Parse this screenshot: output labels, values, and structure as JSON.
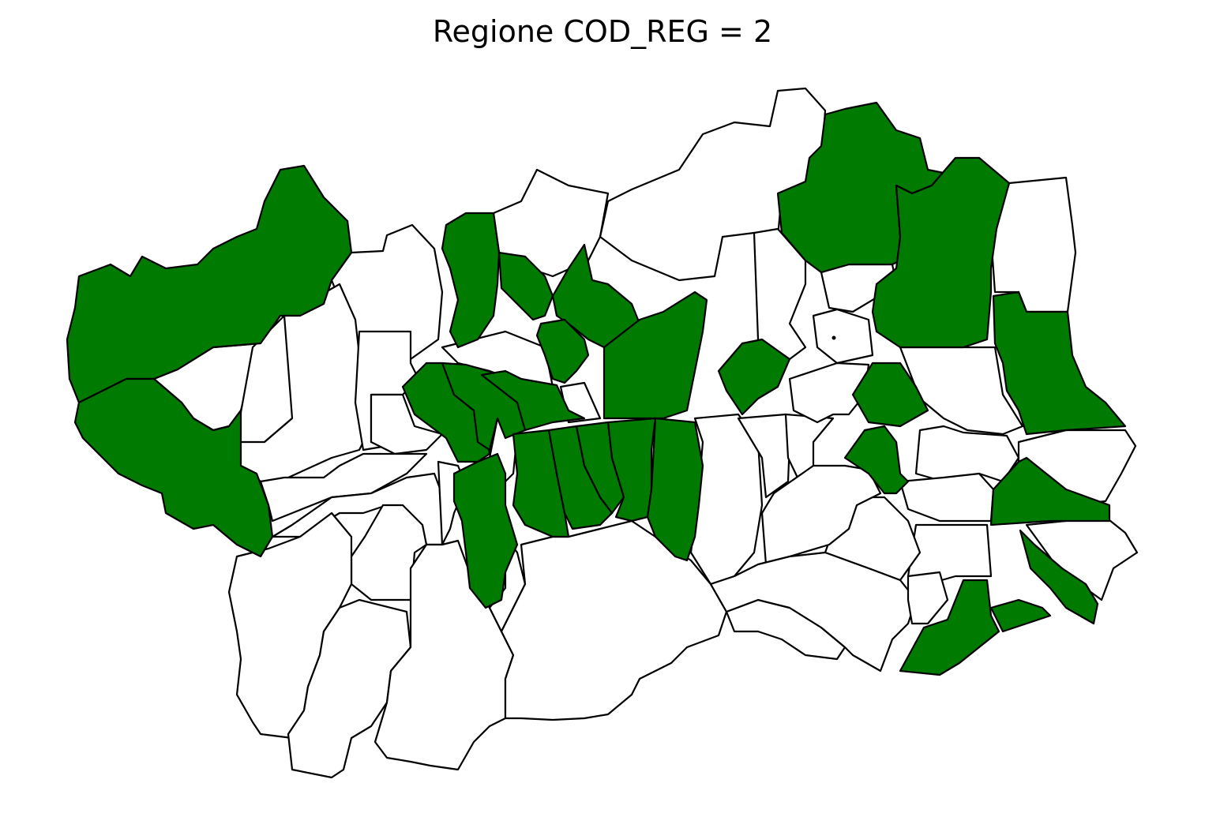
{
  "title": "Regione COD_REG = 2",
  "colors": {
    "highlight": "#007a00",
    "base": "#ffffff",
    "border": "#000000"
  },
  "municipalities_highlighted": 32,
  "municipalities_total": 74
}
